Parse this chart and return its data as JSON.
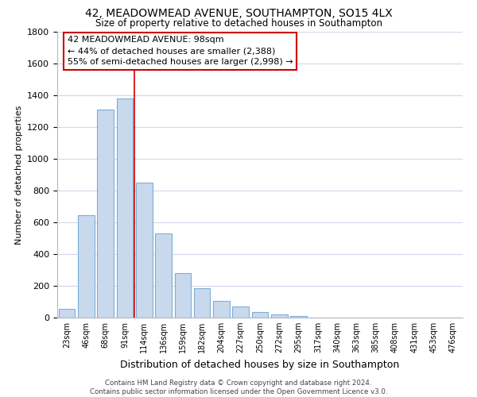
{
  "title1": "42, MEADOWMEAD AVENUE, SOUTHAMPTON, SO15 4LX",
  "title2": "Size of property relative to detached houses in Southampton",
  "xlabel": "Distribution of detached houses by size in Southampton",
  "ylabel": "Number of detached properties",
  "categories": [
    "23sqm",
    "46sqm",
    "68sqm",
    "91sqm",
    "114sqm",
    "136sqm",
    "159sqm",
    "182sqm",
    "204sqm",
    "227sqm",
    "250sqm",
    "272sqm",
    "295sqm",
    "317sqm",
    "340sqm",
    "363sqm",
    "385sqm",
    "408sqm",
    "431sqm",
    "453sqm",
    "476sqm"
  ],
  "values": [
    55,
    645,
    1310,
    1380,
    850,
    530,
    280,
    185,
    105,
    68,
    35,
    22,
    8,
    0,
    0,
    0,
    0,
    0,
    0,
    0,
    0
  ],
  "bar_color": "#c9d9ed",
  "bar_edge_color": "#7aafd4",
  "red_line_x": 3.5,
  "annotation_title": "42 MEADOWMEAD AVENUE: 98sqm",
  "annotation_line1": "← 44% of detached houses are smaller (2,388)",
  "annotation_line2": "55% of semi-detached houses are larger (2,998) →",
  "annotation_box_color": "#ffffff",
  "annotation_box_edge_color": "#cc0000",
  "ylim": [
    0,
    1800
  ],
  "yticks": [
    0,
    200,
    400,
    600,
    800,
    1000,
    1200,
    1400,
    1600,
    1800
  ],
  "footer1": "Contains HM Land Registry data © Crown copyright and database right 2024.",
  "footer2": "Contains public sector information licensed under the Open Government Licence v3.0.",
  "background_color": "#ffffff",
  "grid_color": "#d0d8e8"
}
